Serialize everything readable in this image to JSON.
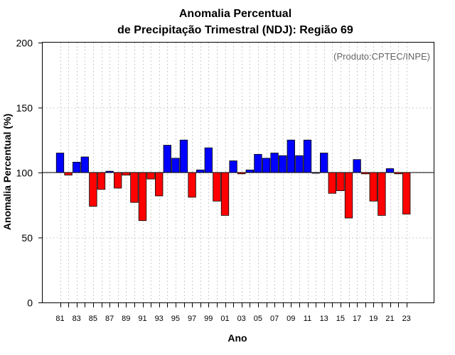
{
  "colors": {
    "positive": "#0000ff",
    "negative": "#ff0000",
    "grid": "#cccccc",
    "credit": "#666666"
  },
  "chart_data": {
    "type": "bar",
    "title": [
      "Anomalia Percentual",
      "de Precipitação Trimestral (NDJ): Região 69"
    ],
    "xlabel": "Ano",
    "ylabel": "Anomalia Percentual (%)",
    "credit": "(Produto:CPTEC/INPE)",
    "ylim": [
      0,
      200
    ],
    "yticks": [
      0,
      50,
      100,
      150,
      200
    ],
    "baseline": 100,
    "grid": true,
    "years": [
      1981,
      1982,
      1983,
      1984,
      1985,
      1986,
      1987,
      1988,
      1989,
      1990,
      1991,
      1992,
      1993,
      1994,
      1995,
      1996,
      1997,
      1998,
      1999,
      2000,
      2001,
      2002,
      2003,
      2004,
      2005,
      2006,
      2007,
      2008,
      2009,
      2010,
      2011,
      2012,
      2013,
      2014,
      2015,
      2016,
      2017,
      2018,
      2019,
      2020,
      2021,
      2022,
      2023
    ],
    "xtick_labels": [
      "81",
      "83",
      "85",
      "87",
      "89",
      "91",
      "93",
      "95",
      "97",
      "99",
      "01",
      "03",
      "05",
      "07",
      "09",
      "11",
      "13",
      "15",
      "17",
      "19",
      "21",
      "23"
    ],
    "values": [
      115,
      98,
      108,
      112,
      74,
      87,
      101,
      88,
      98,
      77,
      63,
      95,
      82,
      121,
      111,
      125,
      81,
      102,
      119,
      78,
      67,
      109,
      99,
      102,
      114,
      111,
      115,
      113,
      125,
      113,
      125,
      100,
      115,
      84,
      86,
      65,
      110,
      99,
      78,
      67,
      103,
      99,
      68
    ]
  }
}
